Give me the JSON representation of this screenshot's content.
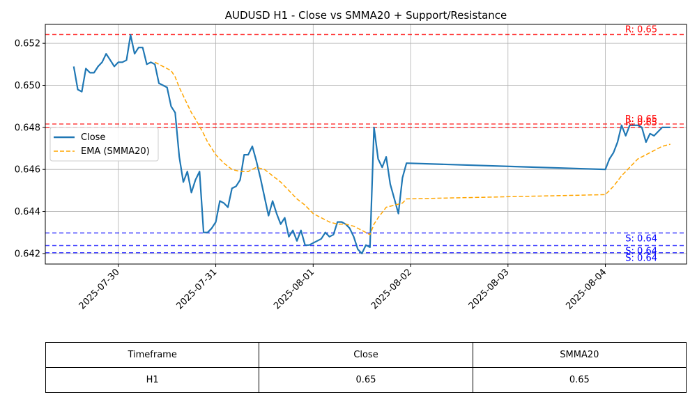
{
  "chart_data": {
    "type": "line",
    "title": "AUDUSD H1 - Close vs SMMA20 + Support/Resistance",
    "xlabel": "",
    "ylabel": "",
    "x_ticks": [
      "2025-07-30",
      "2025-07-31",
      "2025-08-01",
      "2025-08-02",
      "2025-08-03",
      "2025-08-04"
    ],
    "y_ticks": [
      "0.642",
      "0.644",
      "0.646",
      "0.648",
      "0.650",
      "0.652"
    ],
    "xlim": [
      "2025-07-29 06:00",
      "2025-08-04 20:00"
    ],
    "ylim": [
      0.6415,
      0.6529
    ],
    "grid": true,
    "legend_position": "center-left",
    "series": [
      {
        "name": "Close",
        "color": "#1f77b4",
        "style": "solid",
        "points": [
          [
            "2025-07-29 13:00",
            0.6509
          ],
          [
            "2025-07-29 14:00",
            0.6498
          ],
          [
            "2025-07-29 15:00",
            0.6497
          ],
          [
            "2025-07-29 16:00",
            0.6508
          ],
          [
            "2025-07-29 17:00",
            0.6506
          ],
          [
            "2025-07-29 18:00",
            0.6506
          ],
          [
            "2025-07-29 19:00",
            0.6509
          ],
          [
            "2025-07-29 20:00",
            0.6511
          ],
          [
            "2025-07-29 21:00",
            0.6515
          ],
          [
            "2025-07-29 22:00",
            0.6512
          ],
          [
            "2025-07-29 23:00",
            0.6509
          ],
          [
            "2025-07-30 00:00",
            0.6511
          ],
          [
            "2025-07-30 01:00",
            0.6511
          ],
          [
            "2025-07-30 02:00",
            0.6512
          ],
          [
            "2025-07-30 03:00",
            0.6524
          ],
          [
            "2025-07-30 04:00",
            0.6515
          ],
          [
            "2025-07-30 05:00",
            0.6518
          ],
          [
            "2025-07-30 06:00",
            0.6518
          ],
          [
            "2025-07-30 07:00",
            0.651
          ],
          [
            "2025-07-30 08:00",
            0.6511
          ],
          [
            "2025-07-30 09:00",
            0.651
          ],
          [
            "2025-07-30 10:00",
            0.6501
          ],
          [
            "2025-07-30 11:00",
            0.65
          ],
          [
            "2025-07-30 12:00",
            0.6499
          ],
          [
            "2025-07-30 13:00",
            0.649
          ],
          [
            "2025-07-30 14:00",
            0.6487
          ],
          [
            "2025-07-30 15:00",
            0.6466
          ],
          [
            "2025-07-30 16:00",
            0.6454
          ],
          [
            "2025-07-30 17:00",
            0.6459
          ],
          [
            "2025-07-30 18:00",
            0.6449
          ],
          [
            "2025-07-30 19:00",
            0.6455
          ],
          [
            "2025-07-30 20:00",
            0.6459
          ],
          [
            "2025-07-30 21:00",
            0.643
          ],
          [
            "2025-07-30 22:00",
            0.643
          ],
          [
            "2025-07-30 23:00",
            0.6432
          ],
          [
            "2025-07-31 00:00",
            0.6435
          ],
          [
            "2025-07-31 01:00",
            0.6445
          ],
          [
            "2025-07-31 02:00",
            0.6444
          ],
          [
            "2025-07-31 03:00",
            0.6442
          ],
          [
            "2025-07-31 04:00",
            0.6451
          ],
          [
            "2025-07-31 05:00",
            0.6452
          ],
          [
            "2025-07-31 06:00",
            0.6455
          ],
          [
            "2025-07-31 07:00",
            0.6467
          ],
          [
            "2025-07-31 08:00",
            0.6467
          ],
          [
            "2025-07-31 09:00",
            0.6471
          ],
          [
            "2025-07-31 10:00",
            0.6464
          ],
          [
            "2025-07-31 11:00",
            0.6456
          ],
          [
            "2025-07-31 12:00",
            0.6447
          ],
          [
            "2025-07-31 13:00",
            0.6438
          ],
          [
            "2025-07-31 14:00",
            0.6445
          ],
          [
            "2025-07-31 15:00",
            0.6439
          ],
          [
            "2025-07-31 16:00",
            0.6434
          ],
          [
            "2025-07-31 17:00",
            0.6437
          ],
          [
            "2025-07-31 18:00",
            0.6428
          ],
          [
            "2025-07-31 19:00",
            0.6431
          ],
          [
            "2025-07-31 20:00",
            0.6426
          ],
          [
            "2025-07-31 21:00",
            0.6431
          ],
          [
            "2025-07-31 22:00",
            0.6424
          ],
          [
            "2025-07-31 23:00",
            0.6424
          ],
          [
            "2025-08-01 00:00",
            0.6425
          ],
          [
            "2025-08-01 01:00",
            0.6426
          ],
          [
            "2025-08-01 02:00",
            0.6427
          ],
          [
            "2025-08-01 03:00",
            0.643
          ],
          [
            "2025-08-01 04:00",
            0.6428
          ],
          [
            "2025-08-01 05:00",
            0.6429
          ],
          [
            "2025-08-01 06:00",
            0.6435
          ],
          [
            "2025-08-01 07:00",
            0.6435
          ],
          [
            "2025-08-01 08:00",
            0.6434
          ],
          [
            "2025-08-01 09:00",
            0.6432
          ],
          [
            "2025-08-01 10:00",
            0.6428
          ],
          [
            "2025-08-01 11:00",
            0.6422
          ],
          [
            "2025-08-01 12:00",
            0.642
          ],
          [
            "2025-08-01 13:00",
            0.6424
          ],
          [
            "2025-08-01 14:00",
            0.6423
          ],
          [
            "2025-08-01 15:00",
            0.648
          ],
          [
            "2025-08-01 16:00",
            0.6465
          ],
          [
            "2025-08-01 17:00",
            0.6461
          ],
          [
            "2025-08-01 18:00",
            0.6466
          ],
          [
            "2025-08-01 19:00",
            0.6453
          ],
          [
            "2025-08-01 20:00",
            0.6446
          ],
          [
            "2025-08-01 21:00",
            0.6439
          ],
          [
            "2025-08-01 22:00",
            0.6456
          ],
          [
            "2025-08-01 23:00",
            0.6463
          ],
          [
            "2025-08-04 00:00",
            0.646
          ],
          [
            "2025-08-04 01:00",
            0.6465
          ],
          [
            "2025-08-04 02:00",
            0.6468
          ],
          [
            "2025-08-04 03:00",
            0.6473
          ],
          [
            "2025-08-04 04:00",
            0.6481
          ],
          [
            "2025-08-04 05:00",
            0.6476
          ],
          [
            "2025-08-04 06:00",
            0.6481
          ],
          [
            "2025-08-04 07:00",
            0.6481
          ],
          [
            "2025-08-04 08:00",
            0.6481
          ],
          [
            "2025-08-04 09:00",
            0.648
          ],
          [
            "2025-08-04 10:00",
            0.6473
          ],
          [
            "2025-08-04 11:00",
            0.6477
          ],
          [
            "2025-08-04 12:00",
            0.6476
          ],
          [
            "2025-08-04 13:00",
            0.6478
          ],
          [
            "2025-08-04 14:00",
            0.648
          ],
          [
            "2025-08-04 15:00",
            0.648
          ],
          [
            "2025-08-04 16:00",
            0.648
          ]
        ]
      },
      {
        "name": "EMA (SMMA20)",
        "color": "#ffa500",
        "style": "dashed",
        "points": [
          [
            "2025-07-30 09:00",
            0.6511
          ],
          [
            "2025-07-30 11:00",
            0.6509
          ],
          [
            "2025-07-30 13:00",
            0.6507
          ],
          [
            "2025-07-30 14:00",
            0.6504
          ],
          [
            "2025-07-30 15:00",
            0.6499
          ],
          [
            "2025-07-30 16:00",
            0.6495
          ],
          [
            "2025-07-30 17:00",
            0.6491
          ],
          [
            "2025-07-30 18:00",
            0.6487
          ],
          [
            "2025-07-30 19:00",
            0.6484
          ],
          [
            "2025-07-30 21:00",
            0.6477
          ],
          [
            "2025-07-30 22:00",
            0.6473
          ],
          [
            "2025-07-31 00:00",
            0.6467
          ],
          [
            "2025-07-31 02:00",
            0.6463
          ],
          [
            "2025-07-31 04:00",
            0.646
          ],
          [
            "2025-07-31 06:00",
            0.6459
          ],
          [
            "2025-07-31 08:00",
            0.6459
          ],
          [
            "2025-07-31 10:00",
            0.6461
          ],
          [
            "2025-07-31 12:00",
            0.646
          ],
          [
            "2025-07-31 14:00",
            0.6457
          ],
          [
            "2025-07-31 16:00",
            0.6454
          ],
          [
            "2025-07-31 18:00",
            0.645
          ],
          [
            "2025-07-31 20:00",
            0.6446
          ],
          [
            "2025-07-31 22:00",
            0.6443
          ],
          [
            "2025-08-01 00:00",
            0.6439
          ],
          [
            "2025-08-01 02:00",
            0.6437
          ],
          [
            "2025-08-01 04:00",
            0.6435
          ],
          [
            "2025-08-01 06:00",
            0.6434
          ],
          [
            "2025-08-01 08:00",
            0.6434
          ],
          [
            "2025-08-01 10:00",
            0.6433
          ],
          [
            "2025-08-01 12:00",
            0.6431
          ],
          [
            "2025-08-01 14:00",
            0.6429
          ],
          [
            "2025-08-01 15:00",
            0.6434
          ],
          [
            "2025-08-01 16:00",
            0.6437
          ],
          [
            "2025-08-01 18:00",
            0.6442
          ],
          [
            "2025-08-01 20:00",
            0.6443
          ],
          [
            "2025-08-01 22:00",
            0.6444
          ],
          [
            "2025-08-01 23:00",
            0.6446
          ],
          [
            "2025-08-04 00:00",
            0.6448
          ],
          [
            "2025-08-04 02:00",
            0.6452
          ],
          [
            "2025-08-04 04:00",
            0.6457
          ],
          [
            "2025-08-04 06:00",
            0.6461
          ],
          [
            "2025-08-04 08:00",
            0.6465
          ],
          [
            "2025-08-04 10:00",
            0.6467
          ],
          [
            "2025-08-04 12:00",
            0.6469
          ],
          [
            "2025-08-04 14:00",
            0.6471
          ],
          [
            "2025-08-04 16:00",
            0.6472
          ]
        ]
      }
    ],
    "reference_lines": [
      {
        "kind": "resistance",
        "label": "R: 0.65",
        "value": 0.65242,
        "color": "#ff0000"
      },
      {
        "kind": "resistance",
        "label": "R: 0.65",
        "value": 0.64816,
        "color": "#ff0000"
      },
      {
        "kind": "resistance",
        "label": "R: 0.65",
        "value": 0.64799,
        "color": "#ff0000"
      },
      {
        "kind": "support",
        "label": "S: 0.64",
        "value": 0.64298,
        "color": "#0000ff"
      },
      {
        "kind": "support",
        "label": "S: 0.64",
        "value": 0.64238,
        "color": "#0000ff"
      },
      {
        "kind": "support",
        "label": "S: 0.64",
        "value": 0.64204,
        "color": "#0000ff"
      }
    ]
  },
  "table": {
    "headers": [
      "Timeframe",
      "Close",
      "SMMA20"
    ],
    "row": [
      "H1",
      "0.65",
      "0.65"
    ]
  }
}
